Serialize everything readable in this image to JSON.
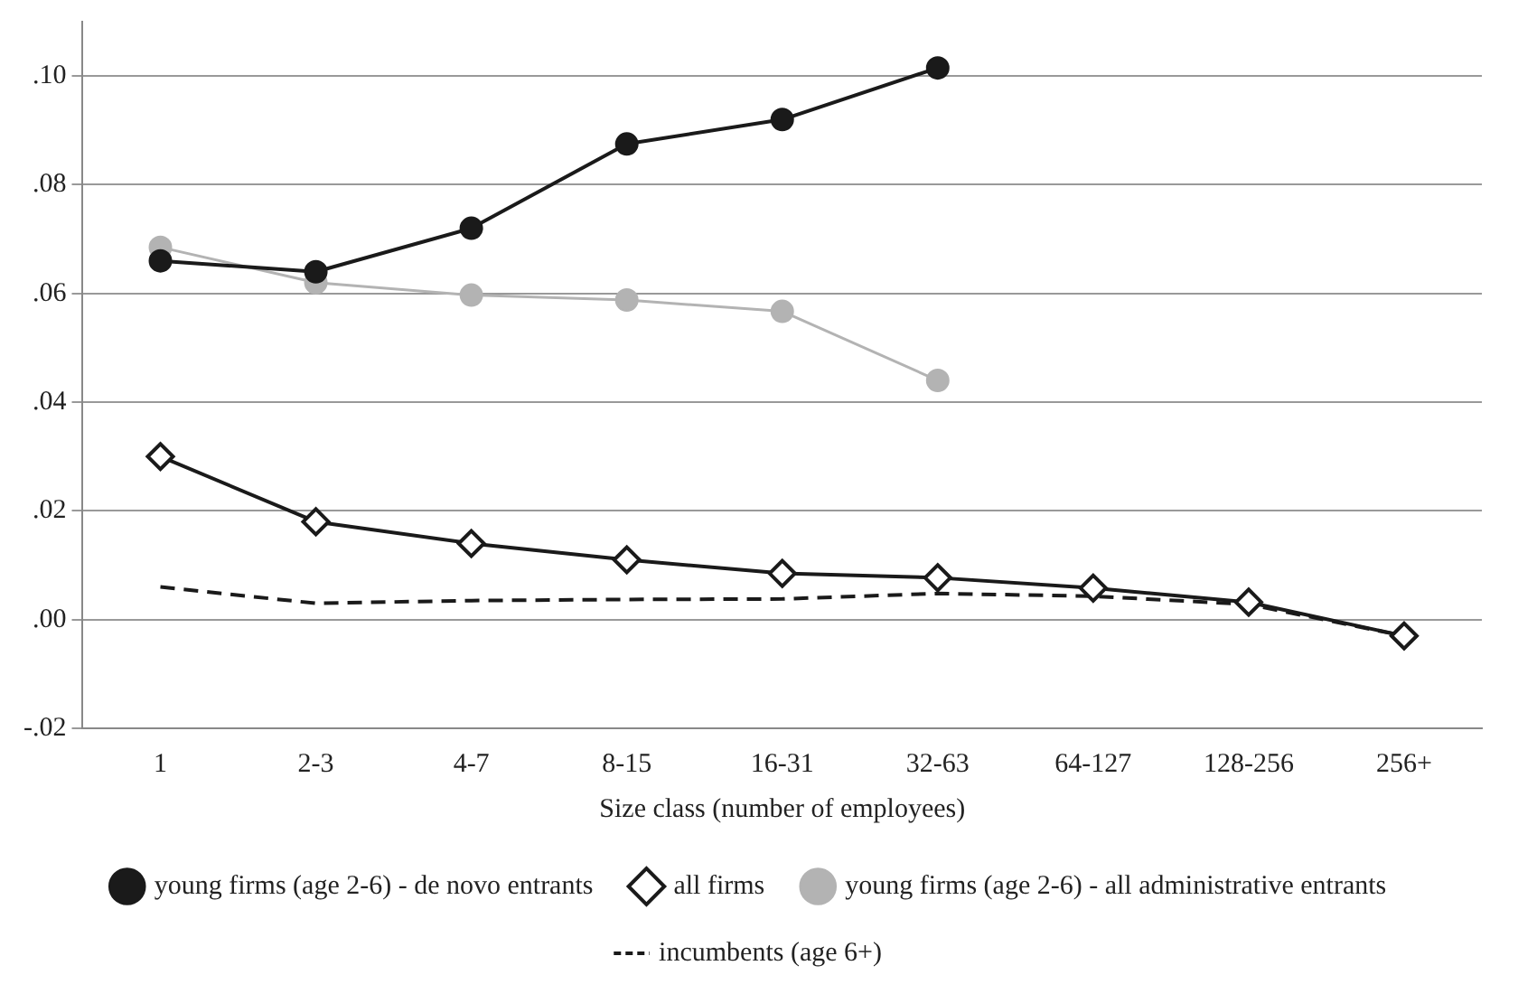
{
  "chart_data": {
    "type": "line",
    "xlabel": "Size class (number of employees)",
    "categories": [
      "1",
      "2-3",
      "4-7",
      "8-15",
      "16-31",
      "32-63",
      "64-127",
      "128-256",
      "256+"
    ],
    "series": [
      {
        "name": "young firms (age 2-6) - de novo entrants",
        "color": "#1a1a1a",
        "marker": "circle",
        "line_style": "solid",
        "values": [
          0.066,
          0.064,
          0.072,
          0.0875,
          0.092,
          0.1015,
          null,
          null,
          null
        ]
      },
      {
        "name": "all firms",
        "color": "#1a1a1a",
        "marker": "diamond",
        "line_style": "solid",
        "values": [
          0.03,
          0.018,
          0.014,
          0.011,
          0.0085,
          0.0077,
          0.0058,
          0.0032,
          -0.003
        ]
      },
      {
        "name": "young firms (age 2-6) - all administrative entrants",
        "color": "#b3b3b3",
        "marker": "circle",
        "line_style": "solid",
        "values": [
          0.0685,
          0.062,
          0.0597,
          0.0588,
          0.0567,
          0.044,
          null,
          null,
          null
        ]
      },
      {
        "name": "incumbents (age 6+)",
        "color": "#1a1a1a",
        "marker": "none",
        "line_style": "dashed",
        "values": [
          0.006,
          0.003,
          0.0035,
          0.0037,
          0.0038,
          0.0048,
          0.0043,
          0.0028,
          -0.003
        ]
      }
    ],
    "ylim": [
      -0.02,
      0.11
    ],
    "yticks": [
      {
        "value": -0.02,
        "label": "-.02"
      },
      {
        "value": 0,
        "label": ".00"
      },
      {
        "value": 0.02,
        "label": ".02"
      },
      {
        "value": 0.04,
        "label": ".04"
      },
      {
        "value": 0.06,
        "label": ".06"
      },
      {
        "value": 0.08,
        "label": ".08"
      },
      {
        "value": 0.1,
        "label": ".10"
      }
    ],
    "grid": "y",
    "legend": "bottom"
  }
}
